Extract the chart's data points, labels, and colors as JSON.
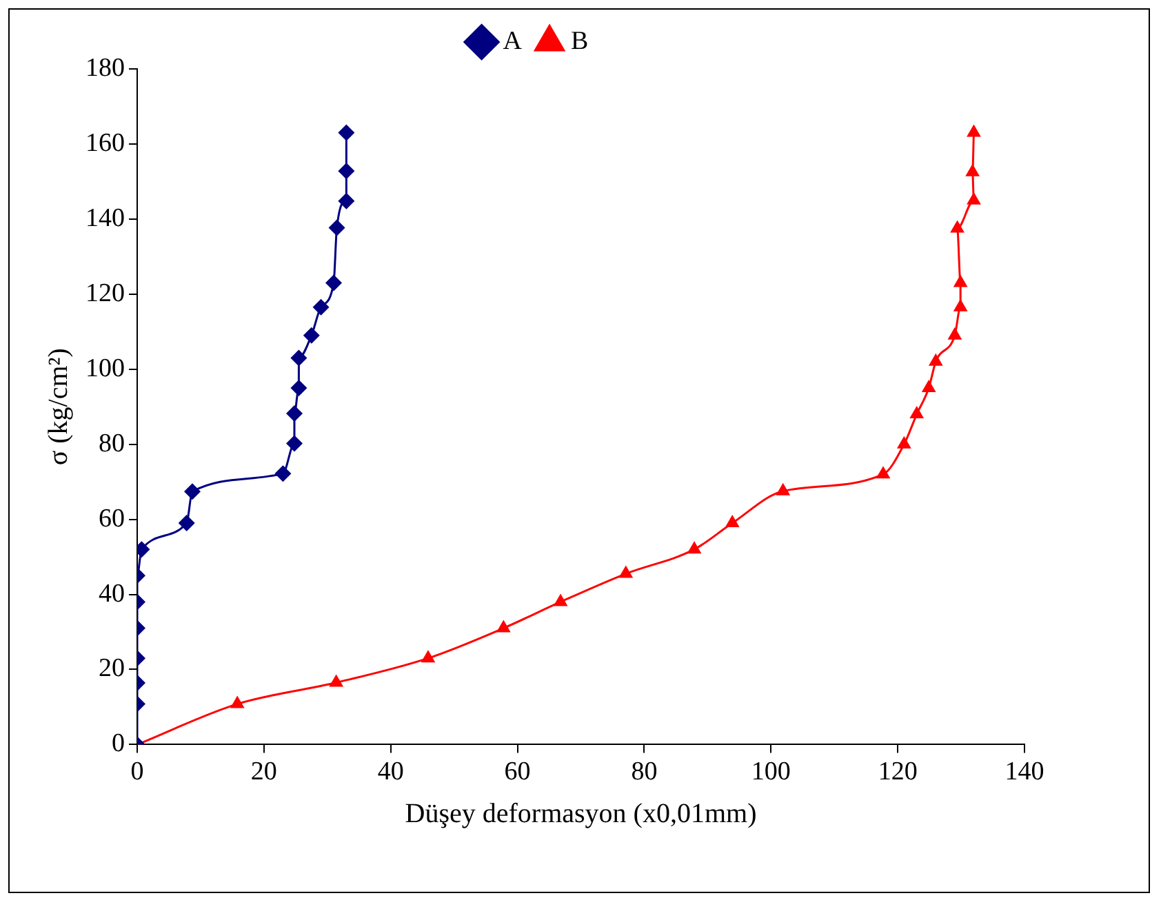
{
  "chart_data": {
    "type": "line",
    "xlabel": "Düşey deformasyon (x0,01mm)",
    "ylabel": "σ (kg/cm²)",
    "xlim": [
      0,
      140
    ],
    "xticks": [
      0,
      20,
      40,
      60,
      80,
      100,
      120,
      140
    ],
    "ylim": [
      0,
      180
    ],
    "yticks": [
      0,
      20,
      40,
      60,
      80,
      100,
      120,
      140,
      160,
      180
    ],
    "grid": false,
    "legend": "top",
    "series": [
      {
        "name": "A",
        "color": "#000080",
        "marker": "diamond",
        "x": [
          0,
          0,
          0,
          0,
          0,
          0,
          0,
          0.7,
          7.8,
          8.7,
          23,
          24.8,
          24.8,
          25.5,
          25.5,
          27.5,
          29,
          31,
          31.5,
          33,
          33,
          33
        ],
        "values": [
          0,
          10.8,
          16.4,
          23,
          31,
          38,
          45,
          52,
          59,
          67.4,
          72.2,
          80.2,
          88.2,
          95,
          103,
          109,
          116.5,
          123,
          137.7,
          144.8,
          152.8,
          163
        ]
      },
      {
        "name": "B",
        "color": "#ff0000",
        "marker": "triangle",
        "x": [
          0,
          15.8,
          31.4,
          45.9,
          57.8,
          66.8,
          77.1,
          87.9,
          93.9,
          101.9,
          117.7,
          121,
          123,
          124.9,
          126,
          129,
          129.9,
          129.9,
          129.4,
          132,
          131.8,
          132
        ],
        "values": [
          0,
          10.8,
          16.5,
          23,
          31,
          38,
          45.5,
          52,
          59,
          67.5,
          72,
          80,
          88,
          95,
          102,
          109,
          116.5,
          123,
          137.5,
          145,
          152.5,
          163
        ]
      }
    ]
  }
}
